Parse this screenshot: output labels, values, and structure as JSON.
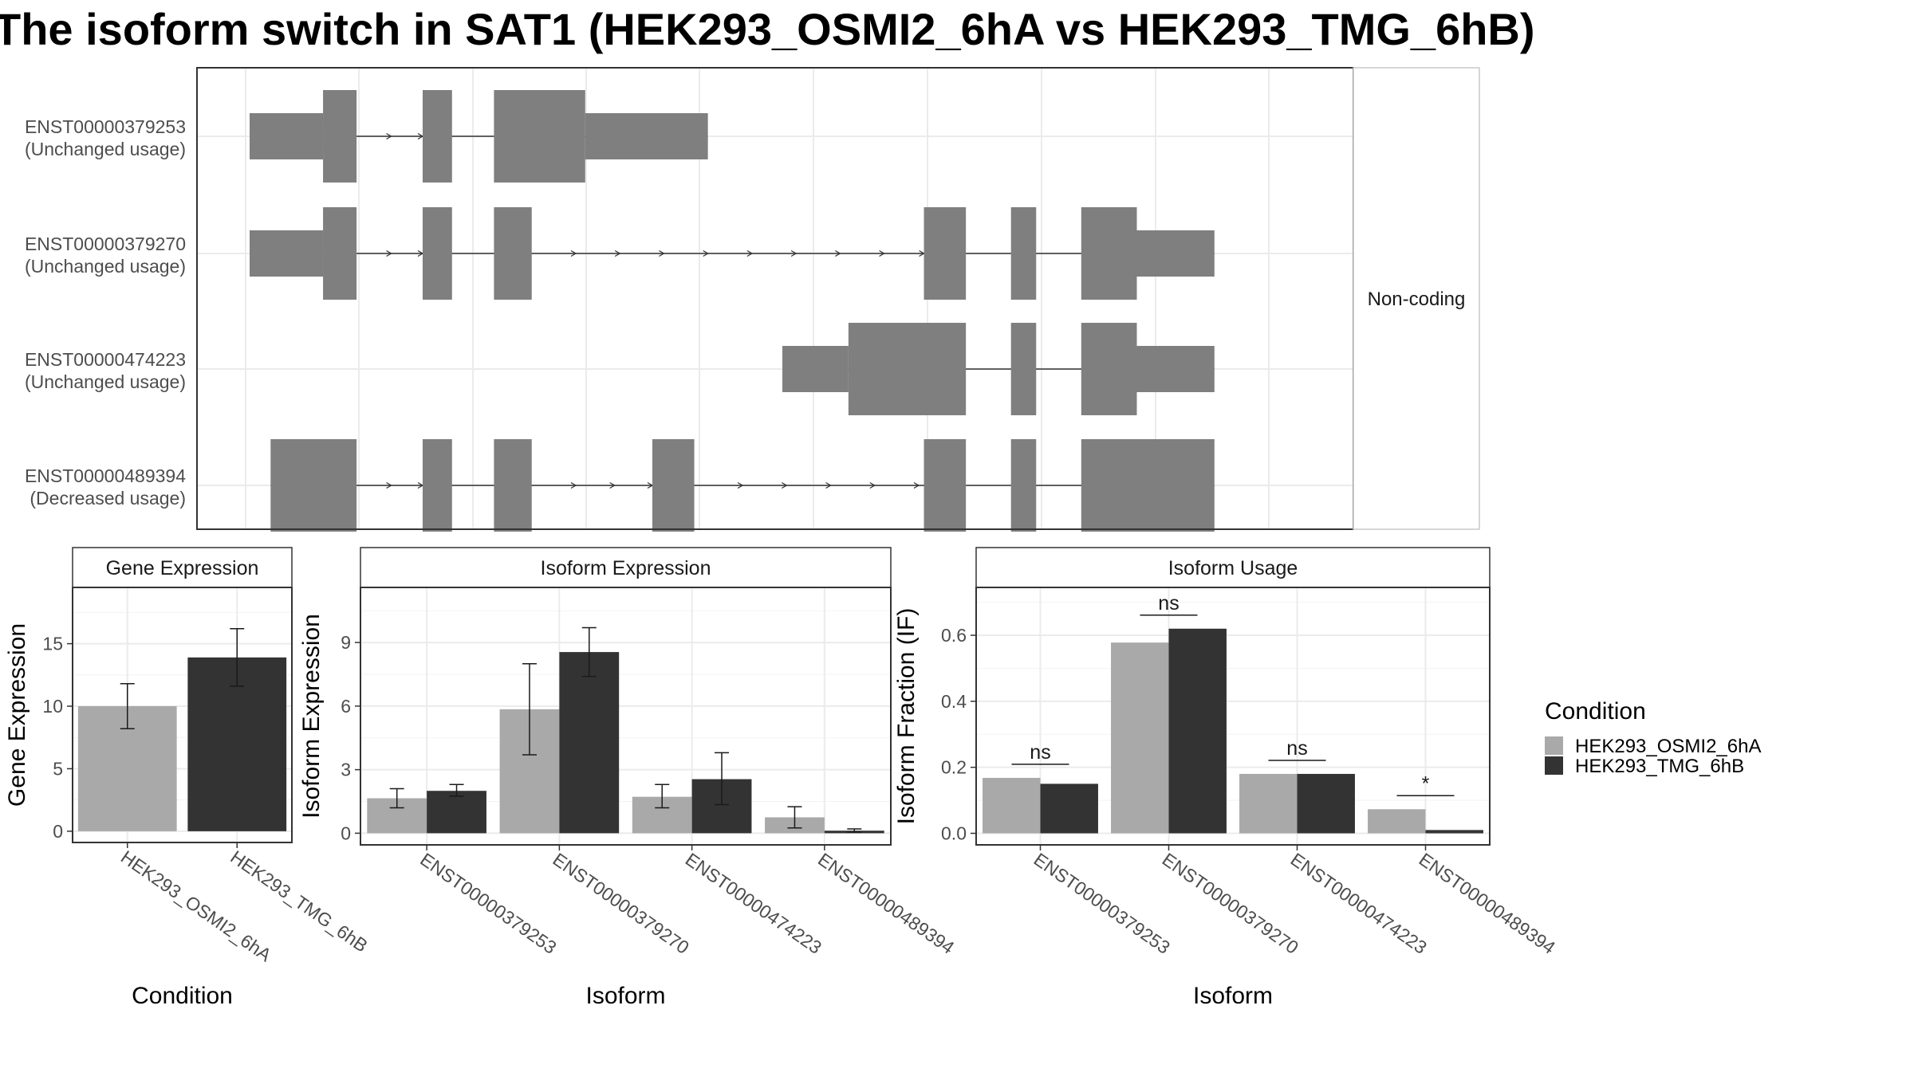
{
  "title": "The isoform switch in SAT1 (HEK293_OSMI2_6hA vs HEK293_TMG_6hB)",
  "colors": {
    "cond_a": "#a9a9a9",
    "cond_b": "#333333",
    "exon": "#7f7f7f",
    "grid": "#ebebeb",
    "panel_border": "#333333",
    "strip_bg": "#ffffff"
  },
  "structure": {
    "strip_label": "Non-coding",
    "genomic_range": [
      0,
      1000
    ],
    "transcripts": [
      {
        "id": "ENST00000379253",
        "usage": "(Unchanged usage)",
        "exons": [
          {
            "start": 0,
            "end": 70,
            "thick": false
          },
          {
            "start": 70,
            "end": 102,
            "thick": true
          },
          {
            "start": 165,
            "end": 193,
            "thick": true
          },
          {
            "start": 233,
            "end": 320,
            "thick": true
          },
          {
            "start": 320,
            "end": 437,
            "thick": false
          }
        ],
        "arrows": [
          135,
          165
        ]
      },
      {
        "id": "ENST00000379270",
        "usage": "(Unchanged usage)",
        "exons": [
          {
            "start": 0,
            "end": 70,
            "thick": false
          },
          {
            "start": 70,
            "end": 102,
            "thick": true
          },
          {
            "start": 165,
            "end": 193,
            "thick": true
          },
          {
            "start": 233,
            "end": 269,
            "thick": true
          },
          {
            "start": 643,
            "end": 683,
            "thick": true
          },
          {
            "start": 726,
            "end": 750,
            "thick": true
          },
          {
            "start": 793,
            "end": 846,
            "thick": true
          },
          {
            "start": 846,
            "end": 920,
            "thick": false
          }
        ],
        "arrows": [
          135,
          165,
          311,
          353,
          395,
          437,
          479,
          521,
          563,
          605,
          643
        ]
      },
      {
        "id": "ENST00000474223",
        "usage": "(Unchanged usage)",
        "exons": [
          {
            "start": 508,
            "end": 571,
            "thick": false
          },
          {
            "start": 571,
            "end": 683,
            "thick": true
          },
          {
            "start": 726,
            "end": 750,
            "thick": true
          },
          {
            "start": 793,
            "end": 846,
            "thick": true
          },
          {
            "start": 846,
            "end": 920,
            "thick": false
          }
        ],
        "arrows": []
      },
      {
        "id": "ENST00000489394",
        "usage": "(Decreased usage)",
        "exons": [
          {
            "start": 20,
            "end": 102,
            "thick": true
          },
          {
            "start": 165,
            "end": 193,
            "thick": true
          },
          {
            "start": 233,
            "end": 269,
            "thick": true
          },
          {
            "start": 384,
            "end": 424,
            "thick": true
          },
          {
            "start": 643,
            "end": 683,
            "thick": true
          },
          {
            "start": 726,
            "end": 750,
            "thick": true
          },
          {
            "start": 793,
            "end": 920,
            "thick": true
          }
        ],
        "arrows": [
          135,
          165,
          311,
          348,
          384,
          470,
          512,
          554,
          596,
          638
        ]
      }
    ]
  },
  "chart_data": [
    {
      "type": "bar",
      "title": "Gene Expression",
      "xlabel": "Condition",
      "ylabel": "Gene Expression",
      "categories": [
        "HEK293_OSMI2_6hA",
        "HEK293_TMG_6hB"
      ],
      "values": [
        10.0,
        13.9
      ],
      "errors": [
        [
          8.2,
          11.8
        ],
        [
          11.6,
          16.2
        ]
      ],
      "ylim": [
        -0.9,
        19.5
      ],
      "yticks": [
        0,
        5,
        10,
        15
      ],
      "grid": true
    },
    {
      "type": "bar",
      "title": "Isoform Expression",
      "xlabel": "Isoform",
      "ylabel": "Isoform Expression",
      "categories": [
        "ENST00000379253",
        "ENST00000379270",
        "ENST00000474223",
        "ENST00000489394"
      ],
      "series": [
        {
          "name": "HEK293_OSMI2_6hA",
          "values": [
            1.65,
            5.85,
            1.72,
            0.75
          ],
          "errors": [
            [
              1.2,
              2.1
            ],
            [
              3.7,
              8.0
            ],
            [
              1.2,
              2.3
            ],
            [
              0.25,
              1.25
            ]
          ]
        },
        {
          "name": "HEK293_TMG_6hB",
          "values": [
            2.0,
            8.55,
            2.55,
            0.12
          ],
          "errors": [
            [
              1.75,
              2.3
            ],
            [
              7.4,
              9.7
            ],
            [
              1.35,
              3.8
            ],
            [
              0.05,
              0.2
            ]
          ]
        }
      ],
      "ylim": [
        -0.55,
        11.6
      ],
      "yticks": [
        0,
        3,
        6,
        9
      ],
      "grid": true
    },
    {
      "type": "bar",
      "title": "Isoform Usage",
      "xlabel": "Isoform",
      "ylabel": "Isoform Fraction (IF)",
      "categories": [
        "ENST00000379253",
        "ENST00000379270",
        "ENST00000474223",
        "ENST00000489394"
      ],
      "series": [
        {
          "name": "HEK293_OSMI2_6hA",
          "values": [
            0.168,
            0.578,
            0.18,
            0.073
          ]
        },
        {
          "name": "HEK293_TMG_6hB",
          "values": [
            0.15,
            0.62,
            0.18,
            0.01
          ]
        }
      ],
      "significance": [
        "ns",
        "ns",
        "ns",
        "*"
      ],
      "ylim": [
        -0.035,
        0.745
      ],
      "yticks": [
        0.0,
        0.2,
        0.4,
        0.6
      ],
      "yticklabels": [
        "0.0",
        "0.2",
        "0.4",
        "0.6"
      ],
      "grid": true
    }
  ],
  "legend": {
    "title": "Condition",
    "items": [
      "HEK293_OSMI2_6hA",
      "HEK293_TMG_6hB"
    ]
  }
}
